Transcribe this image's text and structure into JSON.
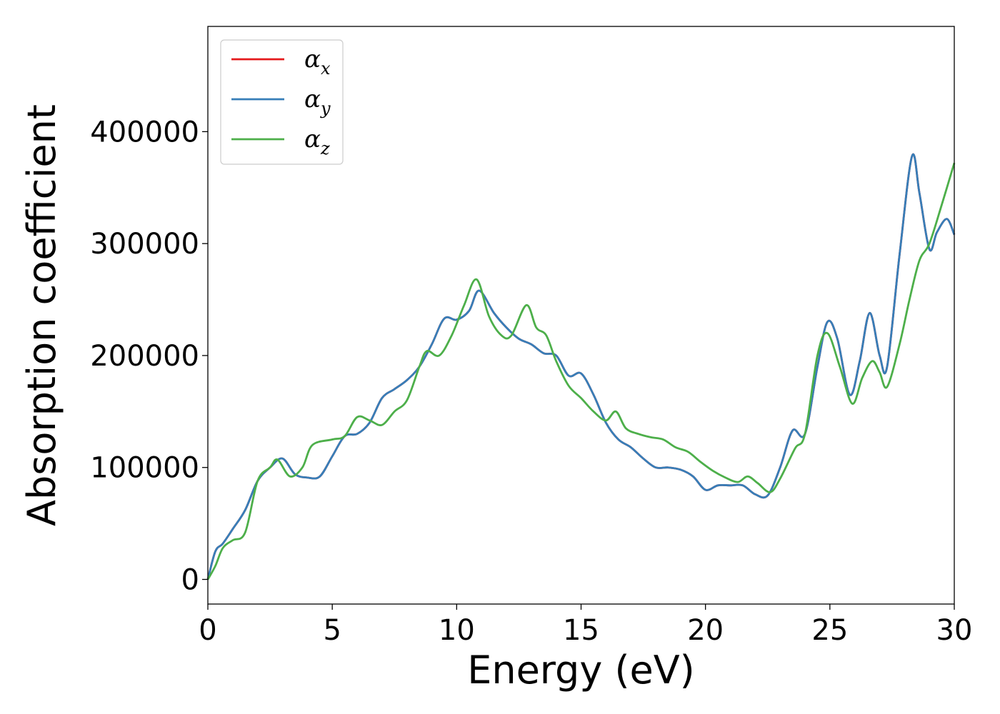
{
  "chart_data": {
    "type": "line",
    "xlabel": "Energy (eV)",
    "ylabel": "Absorption coefficient",
    "xlim": [
      0,
      30
    ],
    "ylim": [
      -22000,
      494000
    ],
    "xticks": [
      0,
      5,
      10,
      15,
      20,
      25,
      30
    ],
    "yticks": [
      0,
      100000,
      200000,
      300000,
      400000
    ],
    "xtick_labels": [
      "0",
      "5",
      "10",
      "15",
      "20",
      "25",
      "30"
    ],
    "ytick_labels": [
      "0",
      "100000",
      "200000",
      "300000",
      "400000"
    ],
    "grid": false,
    "legend_position": "top-left",
    "series": [
      {
        "name": "α",
        "subscript": "x",
        "color": "#e41a1c",
        "x": [
          0,
          0.3,
          0.6,
          1.0,
          1.5,
          2.0,
          2.5,
          3.0,
          3.5,
          4.0,
          4.5,
          5.0,
          5.5,
          6.0,
          6.5,
          7.0,
          7.5,
          8.0,
          8.5,
          9.0,
          9.5,
          10.0,
          10.5,
          10.9,
          11.5,
          12.0,
          12.5,
          13.0,
          13.5,
          14.0,
          14.5,
          15.0,
          15.5,
          16.0,
          16.5,
          17.0,
          17.5,
          18.0,
          18.5,
          19.0,
          19.5,
          20.0,
          20.5,
          21.0,
          21.5,
          22.0,
          22.5,
          23.0,
          23.5,
          24.0,
          24.5,
          24.9,
          25.3,
          25.8,
          26.2,
          26.6,
          27.0,
          27.3,
          27.8,
          28.3,
          28.6,
          29.0,
          29.3,
          29.7,
          30.0
        ],
        "values": [
          0,
          25000,
          32000,
          45000,
          62000,
          88000,
          100000,
          108000,
          94000,
          91000,
          92000,
          110000,
          128000,
          130000,
          140000,
          162000,
          170000,
          178000,
          190000,
          210000,
          233000,
          232000,
          240000,
          258000,
          238000,
          225000,
          215000,
          210000,
          202000,
          200000,
          182000,
          184000,
          165000,
          140000,
          125000,
          118000,
          108000,
          100000,
          100000,
          98000,
          92000,
          80000,
          84000,
          84000,
          84000,
          76000,
          75000,
          100000,
          133000,
          130000,
          190000,
          230000,
          215000,
          165000,
          195000,
          238000,
          200000,
          190000,
          290000,
          378000,
          345000,
          295000,
          310000,
          322000,
          308000
        ]
      },
      {
        "name": "α",
        "subscript": "y",
        "color": "#377eb8",
        "x": [
          0,
          0.3,
          0.6,
          1.0,
          1.5,
          2.0,
          2.5,
          3.0,
          3.5,
          4.0,
          4.5,
          5.0,
          5.5,
          6.0,
          6.5,
          7.0,
          7.5,
          8.0,
          8.5,
          9.0,
          9.5,
          10.0,
          10.5,
          10.9,
          11.5,
          12.0,
          12.5,
          13.0,
          13.5,
          14.0,
          14.5,
          15.0,
          15.5,
          16.0,
          16.5,
          17.0,
          17.5,
          18.0,
          18.5,
          19.0,
          19.5,
          20.0,
          20.5,
          21.0,
          21.5,
          22.0,
          22.5,
          23.0,
          23.5,
          24.0,
          24.5,
          24.9,
          25.3,
          25.8,
          26.2,
          26.6,
          27.0,
          27.3,
          27.8,
          28.3,
          28.6,
          29.0,
          29.3,
          29.7,
          30.0
        ],
        "values": [
          0,
          25000,
          32000,
          45000,
          62000,
          88000,
          100000,
          108000,
          94000,
          91000,
          92000,
          110000,
          128000,
          130000,
          140000,
          162000,
          170000,
          178000,
          190000,
          210000,
          233000,
          232000,
          240000,
          258000,
          238000,
          225000,
          215000,
          210000,
          202000,
          200000,
          182000,
          184000,
          165000,
          140000,
          125000,
          118000,
          108000,
          100000,
          100000,
          98000,
          92000,
          80000,
          84000,
          84000,
          84000,
          76000,
          75000,
          100000,
          133000,
          130000,
          190000,
          230000,
          215000,
          165000,
          195000,
          238000,
          200000,
          190000,
          290000,
          378000,
          345000,
          295000,
          310000,
          322000,
          308000
        ]
      },
      {
        "name": "α",
        "subscript": "z",
        "color": "#4daf4a",
        "x": [
          0,
          0.3,
          0.6,
          1.0,
          1.5,
          2.0,
          2.5,
          2.8,
          3.3,
          3.8,
          4.2,
          5.0,
          5.5,
          6.0,
          6.5,
          7.0,
          7.5,
          8.0,
          8.5,
          8.8,
          9.3,
          9.8,
          10.3,
          10.8,
          11.3,
          11.8,
          12.2,
          12.8,
          13.2,
          13.6,
          14.0,
          14.5,
          15.0,
          15.5,
          16.0,
          16.4,
          16.8,
          17.3,
          17.8,
          18.3,
          18.8,
          19.3,
          19.8,
          20.3,
          20.8,
          21.3,
          21.7,
          22.1,
          22.6,
          23.0,
          23.6,
          24.0,
          24.5,
          24.9,
          25.4,
          25.9,
          26.3,
          26.7,
          27.0,
          27.3,
          27.8,
          28.2,
          28.6,
          29.0,
          29.5,
          30.0
        ],
        "values": [
          0,
          12000,
          28000,
          35000,
          42000,
          88000,
          100000,
          107000,
          92000,
          100000,
          120000,
          125000,
          128000,
          145000,
          142000,
          138000,
          150000,
          160000,
          190000,
          204000,
          200000,
          218000,
          245000,
          268000,
          235000,
          218000,
          218000,
          245000,
          225000,
          218000,
          195000,
          173000,
          162000,
          150000,
          142000,
          150000,
          135000,
          130000,
          127000,
          125000,
          118000,
          114000,
          105000,
          97000,
          91000,
          87000,
          92000,
          86000,
          78000,
          90000,
          117000,
          130000,
          200000,
          220000,
          190000,
          157000,
          180000,
          195000,
          185000,
          172000,
          210000,
          250000,
          285000,
          300000,
          335000,
          372000
        ]
      }
    ]
  }
}
